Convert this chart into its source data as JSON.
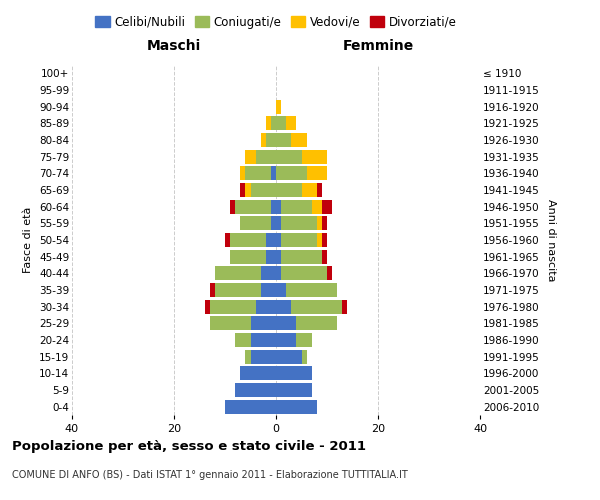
{
  "age_groups": [
    "0-4",
    "5-9",
    "10-14",
    "15-19",
    "20-24",
    "25-29",
    "30-34",
    "35-39",
    "40-44",
    "45-49",
    "50-54",
    "55-59",
    "60-64",
    "65-69",
    "70-74",
    "75-79",
    "80-84",
    "85-89",
    "90-94",
    "95-99",
    "100+"
  ],
  "year_labels": [
    "2006-2010",
    "2001-2005",
    "1996-2000",
    "1991-1995",
    "1986-1990",
    "1981-1985",
    "1976-1980",
    "1971-1975",
    "1966-1970",
    "1961-1965",
    "1956-1960",
    "1951-1955",
    "1946-1950",
    "1941-1945",
    "1936-1940",
    "1931-1935",
    "1926-1930",
    "1921-1925",
    "1916-1920",
    "1911-1915",
    "≤ 1910"
  ],
  "colors": {
    "celibi": "#4472C4",
    "coniugati": "#9BBB59",
    "vedovi": "#FFC000",
    "divorziati": "#C0000C"
  },
  "maschi": {
    "celibi": [
      10,
      8,
      7,
      5,
      5,
      5,
      4,
      3,
      3,
      2,
      2,
      1,
      1,
      0,
      1,
      0,
      0,
      0,
      0,
      0,
      0
    ],
    "coniugati": [
      0,
      0,
      0,
      1,
      3,
      8,
      9,
      9,
      9,
      7,
      7,
      6,
      7,
      5,
      5,
      4,
      2,
      1,
      0,
      0,
      0
    ],
    "vedovi": [
      0,
      0,
      0,
      0,
      0,
      0,
      0,
      0,
      0,
      0,
      0,
      0,
      0,
      1,
      1,
      2,
      1,
      1,
      0,
      0,
      0
    ],
    "divorziati": [
      0,
      0,
      0,
      0,
      0,
      0,
      1,
      1,
      0,
      0,
      1,
      0,
      1,
      1,
      0,
      0,
      0,
      0,
      0,
      0,
      0
    ]
  },
  "femmine": {
    "celibi": [
      8,
      7,
      7,
      5,
      4,
      4,
      3,
      2,
      1,
      1,
      1,
      1,
      1,
      0,
      0,
      0,
      0,
      0,
      0,
      0,
      0
    ],
    "coniugati": [
      0,
      0,
      0,
      1,
      3,
      8,
      10,
      10,
      9,
      8,
      7,
      7,
      6,
      5,
      6,
      5,
      3,
      2,
      0,
      0,
      0
    ],
    "vedovi": [
      0,
      0,
      0,
      0,
      0,
      0,
      0,
      0,
      0,
      0,
      1,
      1,
      2,
      3,
      4,
      5,
      3,
      2,
      1,
      0,
      0
    ],
    "divorziati": [
      0,
      0,
      0,
      0,
      0,
      0,
      1,
      0,
      1,
      1,
      1,
      1,
      2,
      1,
      0,
      0,
      0,
      0,
      0,
      0,
      0
    ]
  },
  "title": "Popolazione per età, sesso e stato civile - 2011",
  "subtitle": "COMUNE DI ANFO (BS) - Dati ISTAT 1° gennaio 2011 - Elaborazione TUTTITALIA.IT",
  "xlabel_left": "Maschi",
  "xlabel_right": "Femmine",
  "ylabel_left": "Fasce di età",
  "ylabel_right": "Anni di nascita",
  "xlim": 40,
  "background_color": "#ffffff",
  "grid_color": "#cccccc"
}
